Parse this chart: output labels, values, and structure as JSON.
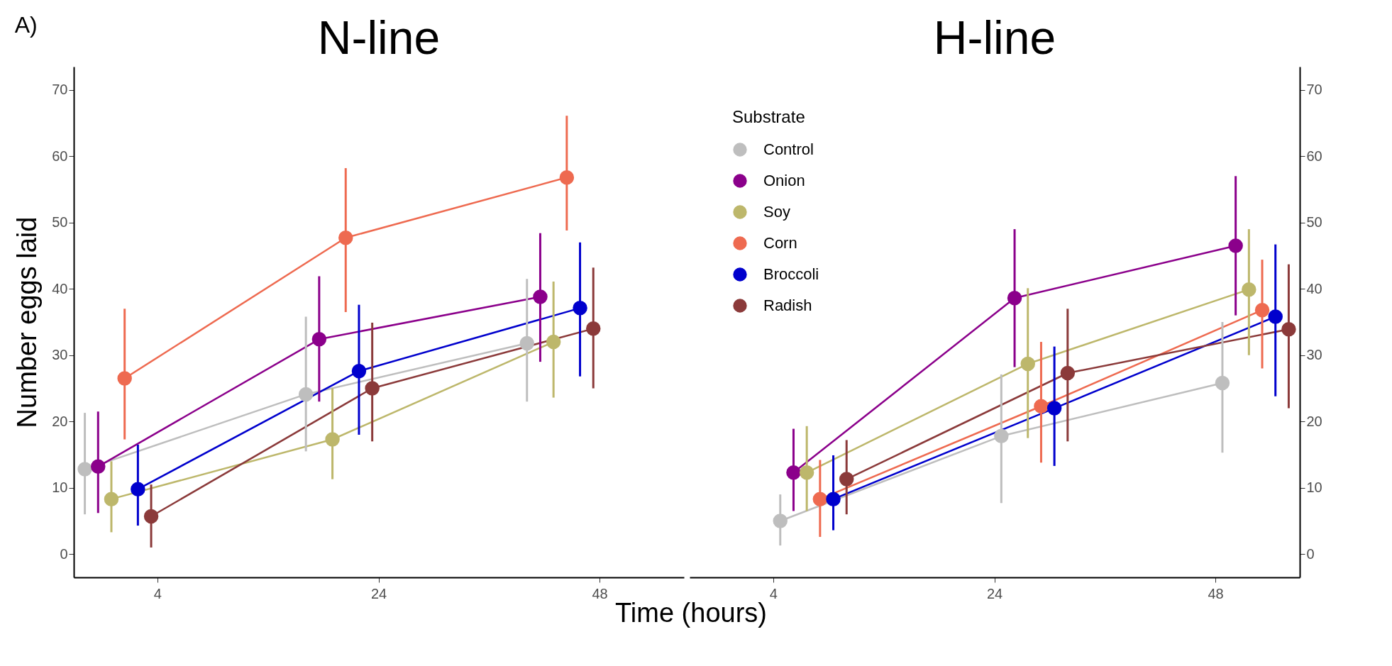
{
  "chart_data": [
    {
      "type": "line",
      "title": "N-line",
      "ylabel": "Number eggs laid",
      "xlabel": "Time (hours)",
      "annotations": [
        "A)"
      ],
      "categories": [
        "4",
        "24",
        "48"
      ],
      "ylim": [
        -3.5,
        73.5
      ],
      "yticks": [
        0,
        10,
        20,
        30,
        40,
        50,
        60,
        70
      ],
      "grid": false,
      "legend": false,
      "marker": "circle",
      "line_style": "solid",
      "series": [
        {
          "color": "#bebebe",
          "values": [
            12.8,
            24.1,
            31.8
          ],
          "errors": [
            [
              6,
              21.3
            ],
            [
              15.5,
              35.8
            ],
            [
              23,
              41.5
            ]
          ]
        },
        {
          "color": "#8b008b",
          "values": [
            13.2,
            32.4,
            38.8
          ],
          "errors": [
            [
              6.2,
              21.5
            ],
            [
              23,
              41.9
            ],
            [
              29,
              48.4
            ]
          ]
        },
        {
          "color": "#bdb76b",
          "values": [
            8.3,
            17.3,
            32
          ],
          "errors": [
            [
              3.3,
              14
            ],
            [
              11.3,
              25
            ],
            [
              23.6,
              41.1
            ]
          ]
        },
        {
          "color": "#ee6a50",
          "values": [
            26.5,
            47.7,
            56.8
          ],
          "errors": [
            [
              17.3,
              37
            ],
            [
              36.5,
              58.2
            ],
            [
              48.8,
              66.1
            ]
          ]
        },
        {
          "color": "#0000cd",
          "values": [
            9.8,
            27.6,
            37.1
          ],
          "errors": [
            [
              4.3,
              16.5
            ],
            [
              18,
              37.6
            ],
            [
              26.8,
              47
            ]
          ]
        },
        {
          "color": "#8b3a3a",
          "values": [
            5.7,
            25,
            34
          ],
          "errors": [
            [
              1,
              10.5
            ],
            [
              17,
              34.9
            ],
            [
              25,
              43.2
            ]
          ]
        }
      ]
    },
    {
      "type": "line",
      "title": "H-line",
      "legend_title": "Substrate",
      "categories": [
        "4",
        "24",
        "48"
      ],
      "ylim": [
        -3.5,
        73.5
      ],
      "yticks": [
        0,
        10,
        20,
        30,
        40,
        50,
        60,
        70
      ],
      "grid": false,
      "legend": "top left",
      "marker": "circle",
      "line_style": "solid",
      "series": [
        {
          "name": "Control",
          "color": "#bebebe",
          "values": [
            5,
            17.8,
            25.8
          ],
          "errors": [
            [
              1.3,
              9
            ],
            [
              7.7,
              27.1
            ],
            [
              15.3,
              35
            ]
          ]
        },
        {
          "name": "Onion",
          "color": "#8b008b",
          "values": [
            12.3,
            38.6,
            46.5
          ],
          "errors": [
            [
              6.5,
              18.9
            ],
            [
              28.2,
              49
            ],
            [
              36,
              57
            ]
          ]
        },
        {
          "name": "Soy",
          "color": "#bdb76b",
          "values": [
            12.3,
            28.7,
            39.9
          ],
          "errors": [
            [
              6.5,
              19.3
            ],
            [
              17.5,
              40.1
            ],
            [
              30,
              49
            ]
          ]
        },
        {
          "name": "Corn",
          "color": "#ee6a50",
          "values": [
            8.3,
            22.3,
            36.8
          ],
          "errors": [
            [
              2.6,
              14.2
            ],
            [
              13.8,
              32
            ],
            [
              28,
              44.4
            ]
          ]
        },
        {
          "name": "Broccoli",
          "color": "#0000cd",
          "values": [
            8.3,
            22,
            35.8
          ],
          "errors": [
            [
              3.6,
              14.9
            ],
            [
              13.3,
              31.3
            ],
            [
              23.8,
              46.7
            ]
          ]
        },
        {
          "name": "Radish",
          "color": "#8b3a3a",
          "values": [
            11.3,
            27.3,
            33.9
          ],
          "errors": [
            [
              6,
              17.2
            ],
            [
              17,
              37
            ],
            [
              22,
              43.7
            ]
          ]
        }
      ]
    }
  ]
}
